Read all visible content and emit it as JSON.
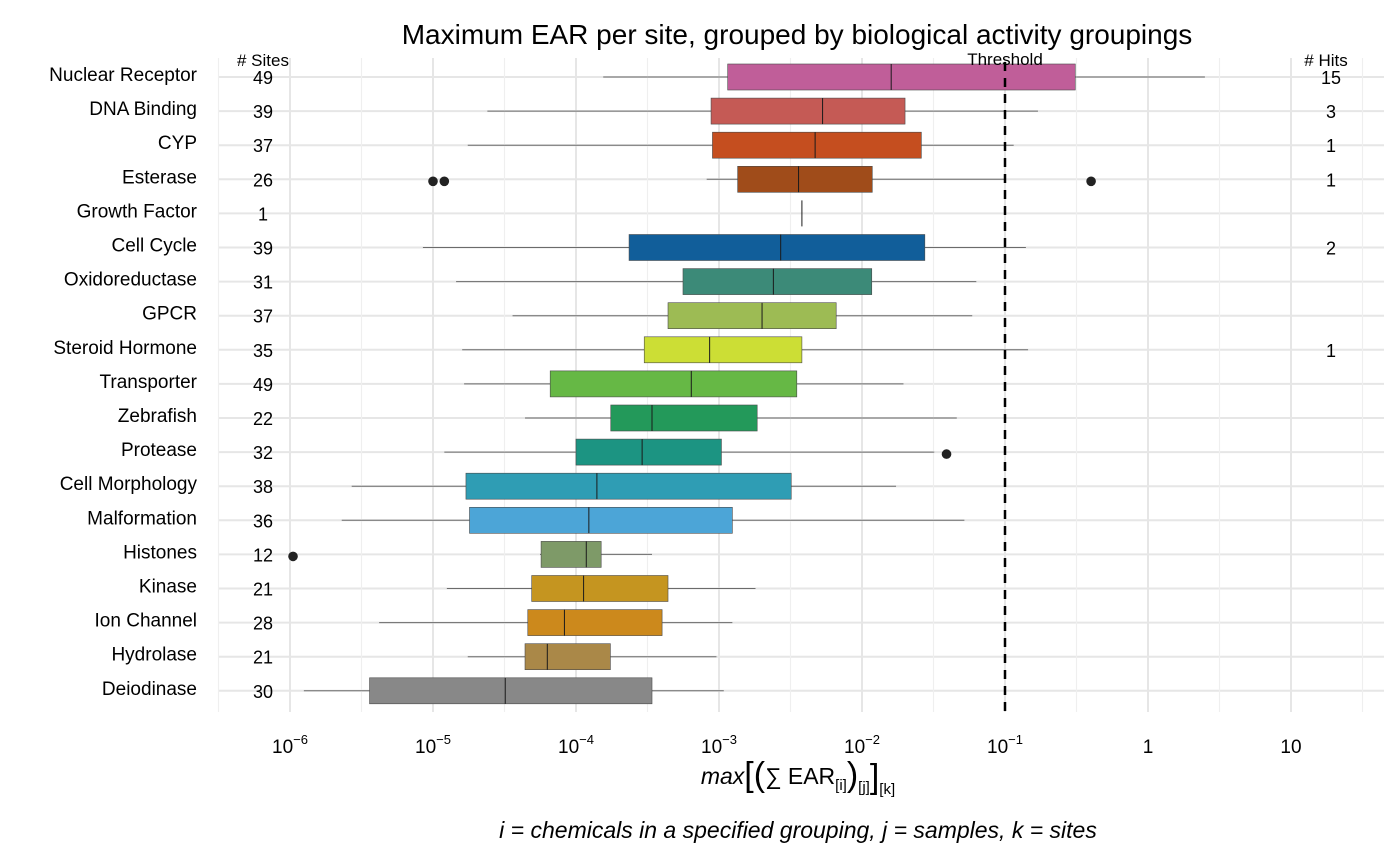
{
  "chart_data": {
    "type": "boxplot",
    "title": "Maximum EAR per site, grouped by biological activity groupings",
    "xscale": "log10",
    "xlim": [
      5e-07,
      50
    ],
    "xticks": [
      {
        "value": 1e-06,
        "base": "10",
        "exp": "−6"
      },
      {
        "value": 1e-05,
        "base": "10",
        "exp": "−5"
      },
      {
        "value": 0.0001,
        "base": "10",
        "exp": "−4"
      },
      {
        "value": 0.001,
        "base": "10",
        "exp": "−3"
      },
      {
        "value": 0.01,
        "base": "10",
        "exp": "−2"
      },
      {
        "value": 0.1,
        "base": "10",
        "exp": "−1"
      },
      {
        "value": 1,
        "base": "1",
        "exp": ""
      },
      {
        "value": 10,
        "base": "10",
        "exp": ""
      }
    ],
    "xlabel": {
      "fn": "max",
      "sum": "∑",
      "ear": "EAR",
      "sub_i": "[i]",
      "sub_j": "[j]",
      "sub_k": "[k]"
    },
    "caption": "i = chemicals in a specified grouping, j = samples, k = sites",
    "sites_header": "# Sites",
    "hits_header": "# Hits",
    "threshold": {
      "value": 0.1,
      "label": "Threshold"
    },
    "grid": true,
    "categories": [
      {
        "name": "Nuclear Receptor",
        "sites": "49",
        "hits": "15",
        "color": "#C05E99",
        "whisker_low": 0.000155,
        "q1": 0.00115,
        "median": 0.016,
        "q3": 0.31,
        "whisker_high": 2.5,
        "outliers": []
      },
      {
        "name": "DNA Binding",
        "sites": "39",
        "hits": "3",
        "color": "#C55A55",
        "whisker_low": 2.4e-05,
        "q1": 0.00088,
        "median": 0.0053,
        "q3": 0.02,
        "whisker_high": 0.17,
        "outliers": []
      },
      {
        "name": "CYP",
        "sites": "37",
        "hits": "1",
        "color": "#C54E1F",
        "whisker_low": 1.75e-05,
        "q1": 0.0009,
        "median": 0.0047,
        "q3": 0.026,
        "whisker_high": 0.115,
        "outliers": []
      },
      {
        "name": "Esterase",
        "sites": "26",
        "hits": "1",
        "color": "#A04C1A",
        "whisker_low": 0.00082,
        "q1": 0.00135,
        "median": 0.0036,
        "q3": 0.0118,
        "whisker_high": 0.1,
        "outliers": [
          1e-05,
          1.2e-05,
          0.4
        ]
      },
      {
        "name": "Growth Factor",
        "sites": "1",
        "hits": "",
        "color": "#8C8C8C",
        "whisker_low": 0.0038,
        "q1": 0.0038,
        "median": 0.0038,
        "q3": 0.0038,
        "whisker_high": 0.0038,
        "outliers": []
      },
      {
        "name": "Cell Cycle",
        "sites": "39",
        "hits": "2",
        "color": "#115E9A",
        "whisker_low": 8.5e-06,
        "q1": 0.000235,
        "median": 0.0027,
        "q3": 0.0275,
        "whisker_high": 0.14,
        "outliers": []
      },
      {
        "name": "Oxidoreductase",
        "sites": "31",
        "hits": "",
        "color": "#3C8A78",
        "whisker_low": 1.45e-05,
        "q1": 0.00056,
        "median": 0.0024,
        "q3": 0.0117,
        "whisker_high": 0.063,
        "outliers": []
      },
      {
        "name": "GPCR",
        "sites": "37",
        "hits": "",
        "color": "#9DBB54",
        "whisker_low": 3.6e-05,
        "q1": 0.00044,
        "median": 0.002,
        "q3": 0.0066,
        "whisker_high": 0.059,
        "outliers": []
      },
      {
        "name": "Steroid Hormone",
        "sites": "35",
        "hits": "1",
        "color": "#CCDE35",
        "whisker_low": 1.6e-05,
        "q1": 0.0003,
        "median": 0.00086,
        "q3": 0.0038,
        "whisker_high": 0.145,
        "outliers": []
      },
      {
        "name": "Transporter",
        "sites": "49",
        "hits": "",
        "color": "#66B845",
        "whisker_low": 1.65e-05,
        "q1": 6.6e-05,
        "median": 0.00064,
        "q3": 0.0035,
        "whisker_high": 0.0195,
        "outliers": []
      },
      {
        "name": "Zebrafish",
        "sites": "22",
        "hits": "",
        "color": "#23995A",
        "whisker_low": 4.4e-05,
        "q1": 0.000175,
        "median": 0.00034,
        "q3": 0.00185,
        "whisker_high": 0.046,
        "outliers": []
      },
      {
        "name": "Protease",
        "sites": "32",
        "hits": "",
        "color": "#1C9482",
        "whisker_low": 1.2e-05,
        "q1": 0.0001,
        "median": 0.00029,
        "q3": 0.00104,
        "whisker_high": 0.032,
        "outliers": [
          0.039
        ]
      },
      {
        "name": "Cell Morphology",
        "sites": "38",
        "hits": "",
        "color": "#2F9DB4",
        "whisker_low": 2.7e-06,
        "q1": 1.7e-05,
        "median": 0.00014,
        "q3": 0.0032,
        "whisker_high": 0.0173,
        "outliers": []
      },
      {
        "name": "Malformation",
        "sites": "36",
        "hits": "",
        "color": "#4CA5D7",
        "whisker_low": 2.3e-06,
        "q1": 1.8e-05,
        "median": 0.000123,
        "q3": 0.00124,
        "whisker_high": 0.052,
        "outliers": []
      },
      {
        "name": "Histones",
        "sites": "12",
        "hits": "",
        "color": "#7E9A68",
        "whisker_low": 5.6e-05,
        "q1": 5.7e-05,
        "median": 0.000118,
        "q3": 0.00015,
        "whisker_high": 0.00034,
        "outliers": [
          1.05e-06
        ]
      },
      {
        "name": "Kinase",
        "sites": "21",
        "hits": "",
        "color": "#C59520",
        "whisker_low": 1.25e-05,
        "q1": 4.9e-05,
        "median": 0.000113,
        "q3": 0.00044,
        "whisker_high": 0.0018,
        "outliers": []
      },
      {
        "name": "Ion Channel",
        "sites": "28",
        "hits": "",
        "color": "#CC891C",
        "whisker_low": 4.2e-06,
        "q1": 4.6e-05,
        "median": 8.3e-05,
        "q3": 0.0004,
        "whisker_high": 0.00124,
        "outliers": []
      },
      {
        "name": "Hydrolase",
        "sites": "21",
        "hits": "",
        "color": "#AA8848",
        "whisker_low": 1.75e-05,
        "q1": 4.4e-05,
        "median": 6.3e-05,
        "q3": 0.000174,
        "whisker_high": 0.00096,
        "outliers": []
      },
      {
        "name": "Deiodinase",
        "sites": "30",
        "hits": "",
        "color": "#888888",
        "whisker_low": 1.25e-06,
        "q1": 3.6e-06,
        "median": 3.2e-05,
        "q3": 0.00034,
        "whisker_high": 0.00108,
        "outliers": []
      }
    ]
  }
}
